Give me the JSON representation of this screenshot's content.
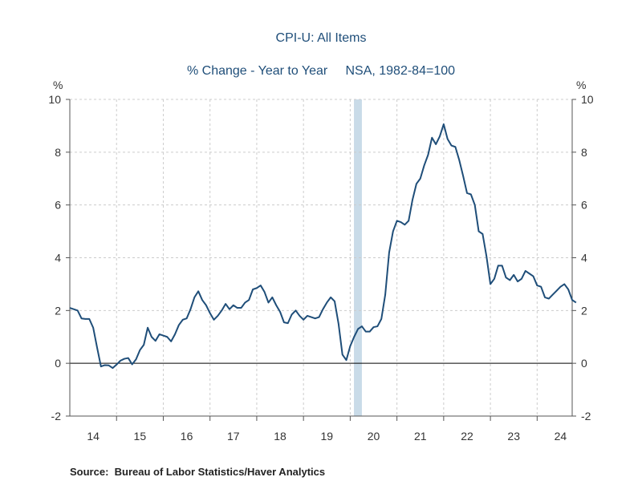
{
  "chart_data": {
    "type": "line",
    "title": "CPI-U: All Items",
    "subtitle": "% Change - Year to Year     NSA, 1982-84=100",
    "ylabel_left": "%",
    "ylabel_right": "%",
    "source": "Source:  Bureau of Labor Statistics/Haver Analytics",
    "xlim": [
      2014.0,
      2024.75
    ],
    "ylim": [
      -2,
      10
    ],
    "y_ticks": [
      -2,
      0,
      2,
      4,
      6,
      8,
      10
    ],
    "x_tick_labels": [
      "14",
      "15",
      "16",
      "17",
      "18",
      "19",
      "20",
      "21",
      "22",
      "23",
      "24"
    ],
    "grid": true,
    "zero_line": true,
    "recession_shading": [
      [
        2020.08,
        2020.25
      ]
    ],
    "colors": {
      "line": "#1f4e79",
      "shading": "#c9dbe8",
      "grid": "#cccccc",
      "title": "#1f4e79"
    },
    "series": [
      {
        "start": "2014-01",
        "frequency": "monthly",
        "values": [
          2.1,
          2.05,
          2.0,
          1.7,
          1.68,
          1.68,
          1.35,
          0.6,
          -0.12,
          -0.07,
          -0.08,
          -0.18,
          -0.05,
          0.1,
          0.17,
          0.2,
          -0.04,
          0.15,
          0.5,
          0.7,
          1.35,
          1.0,
          0.85,
          1.1,
          1.05,
          1.0,
          0.83,
          1.1,
          1.45,
          1.65,
          1.7,
          2.05,
          2.5,
          2.73,
          2.4,
          2.2,
          1.9,
          1.65,
          1.8,
          2.0,
          2.25,
          2.05,
          2.2,
          2.1,
          2.1,
          2.3,
          2.4,
          2.8,
          2.85,
          2.95,
          2.7,
          2.3,
          2.5,
          2.2,
          1.95,
          1.55,
          1.52,
          1.85,
          2.0,
          1.8,
          1.65,
          1.8,
          1.75,
          1.7,
          1.75,
          2.05,
          2.3,
          2.5,
          2.35,
          1.5,
          0.33,
          0.12,
          0.65,
          1.0,
          1.3,
          1.4,
          1.2,
          1.2,
          1.37,
          1.4,
          1.68,
          2.6,
          4.2,
          5.0,
          5.4,
          5.35,
          5.25,
          5.4,
          6.2,
          6.8,
          7.0,
          7.5,
          7.9,
          8.55,
          8.3,
          8.6,
          9.06,
          8.5,
          8.25,
          8.2,
          7.7,
          7.1,
          6.45,
          6.4,
          6.0,
          5.0,
          4.9,
          4.05,
          3.0,
          3.2,
          3.7,
          3.7,
          3.25,
          3.15,
          3.35,
          3.1,
          3.2,
          3.5,
          3.4,
          3.3,
          2.95,
          2.9,
          2.5,
          2.45,
          2.6,
          2.75,
          2.9,
          3.0,
          2.8,
          2.4,
          2.3
        ]
      }
    ]
  }
}
